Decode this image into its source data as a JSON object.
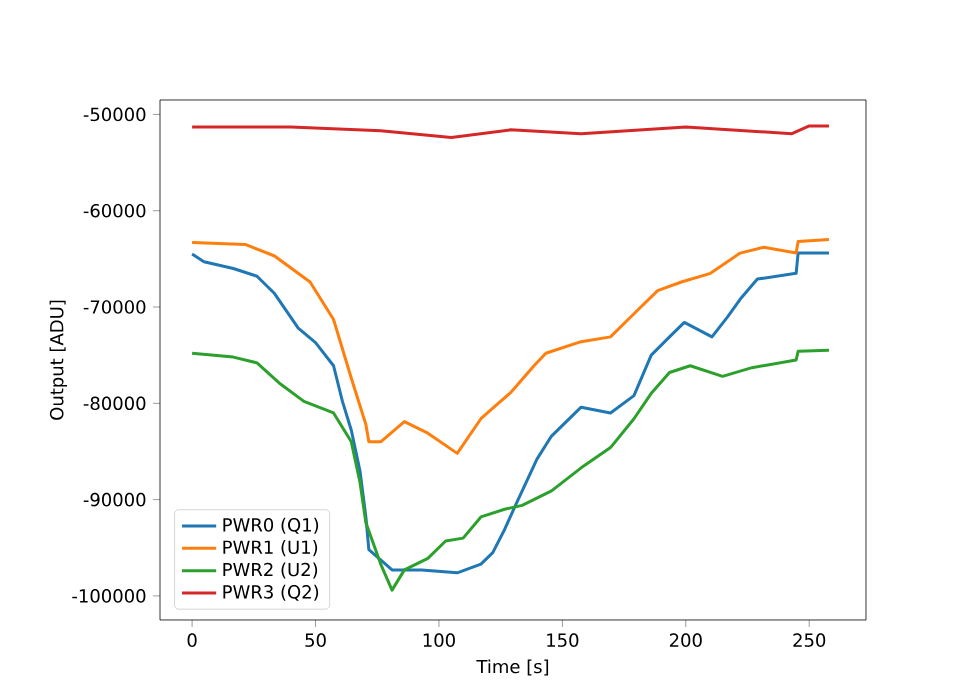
{
  "chart_data": {
    "type": "line",
    "xlabel": "Time [s]",
    "ylabel": "Output [ADU]",
    "xlim": [
      -13,
      273
    ],
    "ylim": [
      -102500,
      -48500
    ],
    "xticks": [
      0,
      50,
      100,
      150,
      200,
      250
    ],
    "yticks": [
      -100000,
      -90000,
      -80000,
      -70000,
      -60000,
      -50000
    ],
    "grid": false,
    "legend": "bottom left",
    "marker": "none",
    "line_style": "solid",
    "series": [
      {
        "name": "PWR0 (Q1)",
        "color": "#1f77b4",
        "x": [
          0,
          4.8,
          16.7,
          26.3,
          33.4,
          43,
          50,
          57.3,
          60.9,
          64.5,
          68,
          70.4,
          71.6,
          81,
          93,
          107.4,
          117,
          121.8,
          126.6,
          131,
          139.7,
          145.6,
          157.6,
          169.5,
          179,
          186,
          193.4,
          199.4,
          210.6,
          217,
          222,
          229,
          244.7,
          245.5,
          258
        ],
        "values": [
          -64500,
          -65300,
          -66000,
          -66800,
          -68600,
          -72200,
          -73700,
          -76100,
          -79800,
          -82800,
          -87000,
          -91800,
          -95200,
          -97300,
          -97300,
          -97600,
          -96700,
          -95500,
          -93100,
          -90600,
          -85800,
          -83400,
          -80400,
          -81000,
          -79200,
          -75000,
          -73100,
          -71600,
          -73100,
          -71000,
          -69200,
          -67100,
          -66500,
          -64400,
          -64400
        ]
      },
      {
        "name": "PWR1 (U1)",
        "color": "#ff7f0e",
        "x": [
          0,
          21.5,
          33.4,
          47.8,
          57.3,
          64.5,
          70.4,
          71.6,
          76.4,
          86,
          95.5,
          107.4,
          117,
          124,
          129,
          138.5,
          143.3,
          157.6,
          169.5,
          179,
          188.6,
          198.2,
          210,
          222,
          231.6,
          244.7,
          245.5,
          258
        ],
        "values": [
          -63300,
          -63500,
          -64700,
          -67400,
          -71300,
          -77400,
          -82200,
          -84000,
          -84000,
          -81900,
          -83100,
          -85200,
          -81600,
          -80000,
          -78900,
          -76100,
          -74800,
          -73600,
          -73100,
          -70700,
          -68300,
          -67400,
          -66500,
          -64400,
          -63800,
          -64400,
          -63200,
          -63000
        ]
      },
      {
        "name": "PWR2 (U2)",
        "color": "#2ca02c",
        "x": [
          0,
          16.7,
          26.3,
          35.8,
          45.3,
          57.3,
          64.5,
          68,
          70.4,
          76.4,
          81,
          86,
          95.5,
          102.7,
          109.8,
          117,
          126.6,
          133.7,
          145.6,
          157.6,
          169.5,
          179,
          186.2,
          193.4,
          201.8,
          214.9,
          226.8,
          244.7,
          245.5,
          258
        ],
        "values": [
          -74800,
          -75200,
          -75800,
          -78000,
          -79800,
          -81000,
          -84000,
          -88200,
          -92400,
          -96700,
          -99400,
          -97300,
          -96100,
          -94300,
          -94000,
          -91800,
          -91000,
          -90600,
          -89100,
          -86700,
          -84600,
          -81600,
          -78900,
          -76800,
          -76100,
          -77200,
          -76300,
          -75500,
          -74600,
          -74500
        ]
      },
      {
        "name": "PWR3 (Q2)",
        "color": "#d62728",
        "x": [
          0,
          40,
          76.4,
          105,
          129,
          157.6,
          200,
          243,
          250,
          258
        ],
        "values": [
          -51300,
          -51300,
          -51700,
          -52400,
          -51600,
          -52000,
          -51300,
          -52000,
          -51200,
          -51200
        ]
      }
    ]
  }
}
